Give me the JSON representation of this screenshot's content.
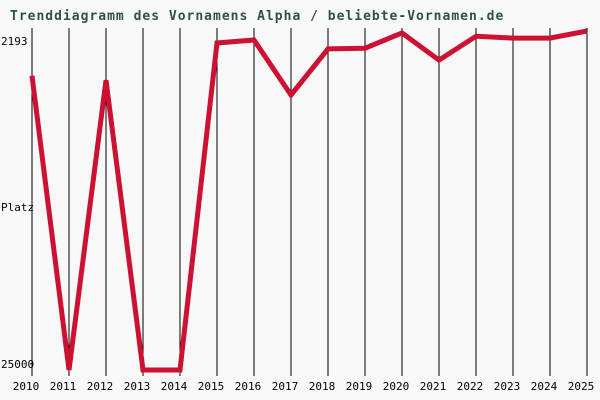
{
  "chart_data": {
    "type": "line",
    "title": "Trenddiagramm des Vornamens Alpha / beliebte-Vornamen.de",
    "x": [
      2010,
      2011,
      2012,
      2013,
      2014,
      2015,
      2016,
      2017,
      2018,
      2019,
      2020,
      2021,
      2022,
      2023,
      2024,
      2025
    ],
    "values": [
      5200,
      25000,
      5500,
      25000,
      25000,
      3000,
      2800,
      6500,
      3400,
      3350,
      2330,
      4150,
      2550,
      2670,
      2670,
      2193
    ],
    "series_name": "Platz des Vornamens Alpha",
    "xlabel": "",
    "ylabel": "Platz",
    "yticks": [
      2193,
      25000
    ],
    "ylim": [
      2193,
      25000
    ],
    "y_axis_inverted": true,
    "grid": "vertical-only",
    "legend": "none"
  },
  "colors": {
    "background": "#f8f8f8",
    "line": "#cc1133",
    "grid": "#000000",
    "title_text": "#2f4f4f",
    "axis_text": "#000000"
  }
}
